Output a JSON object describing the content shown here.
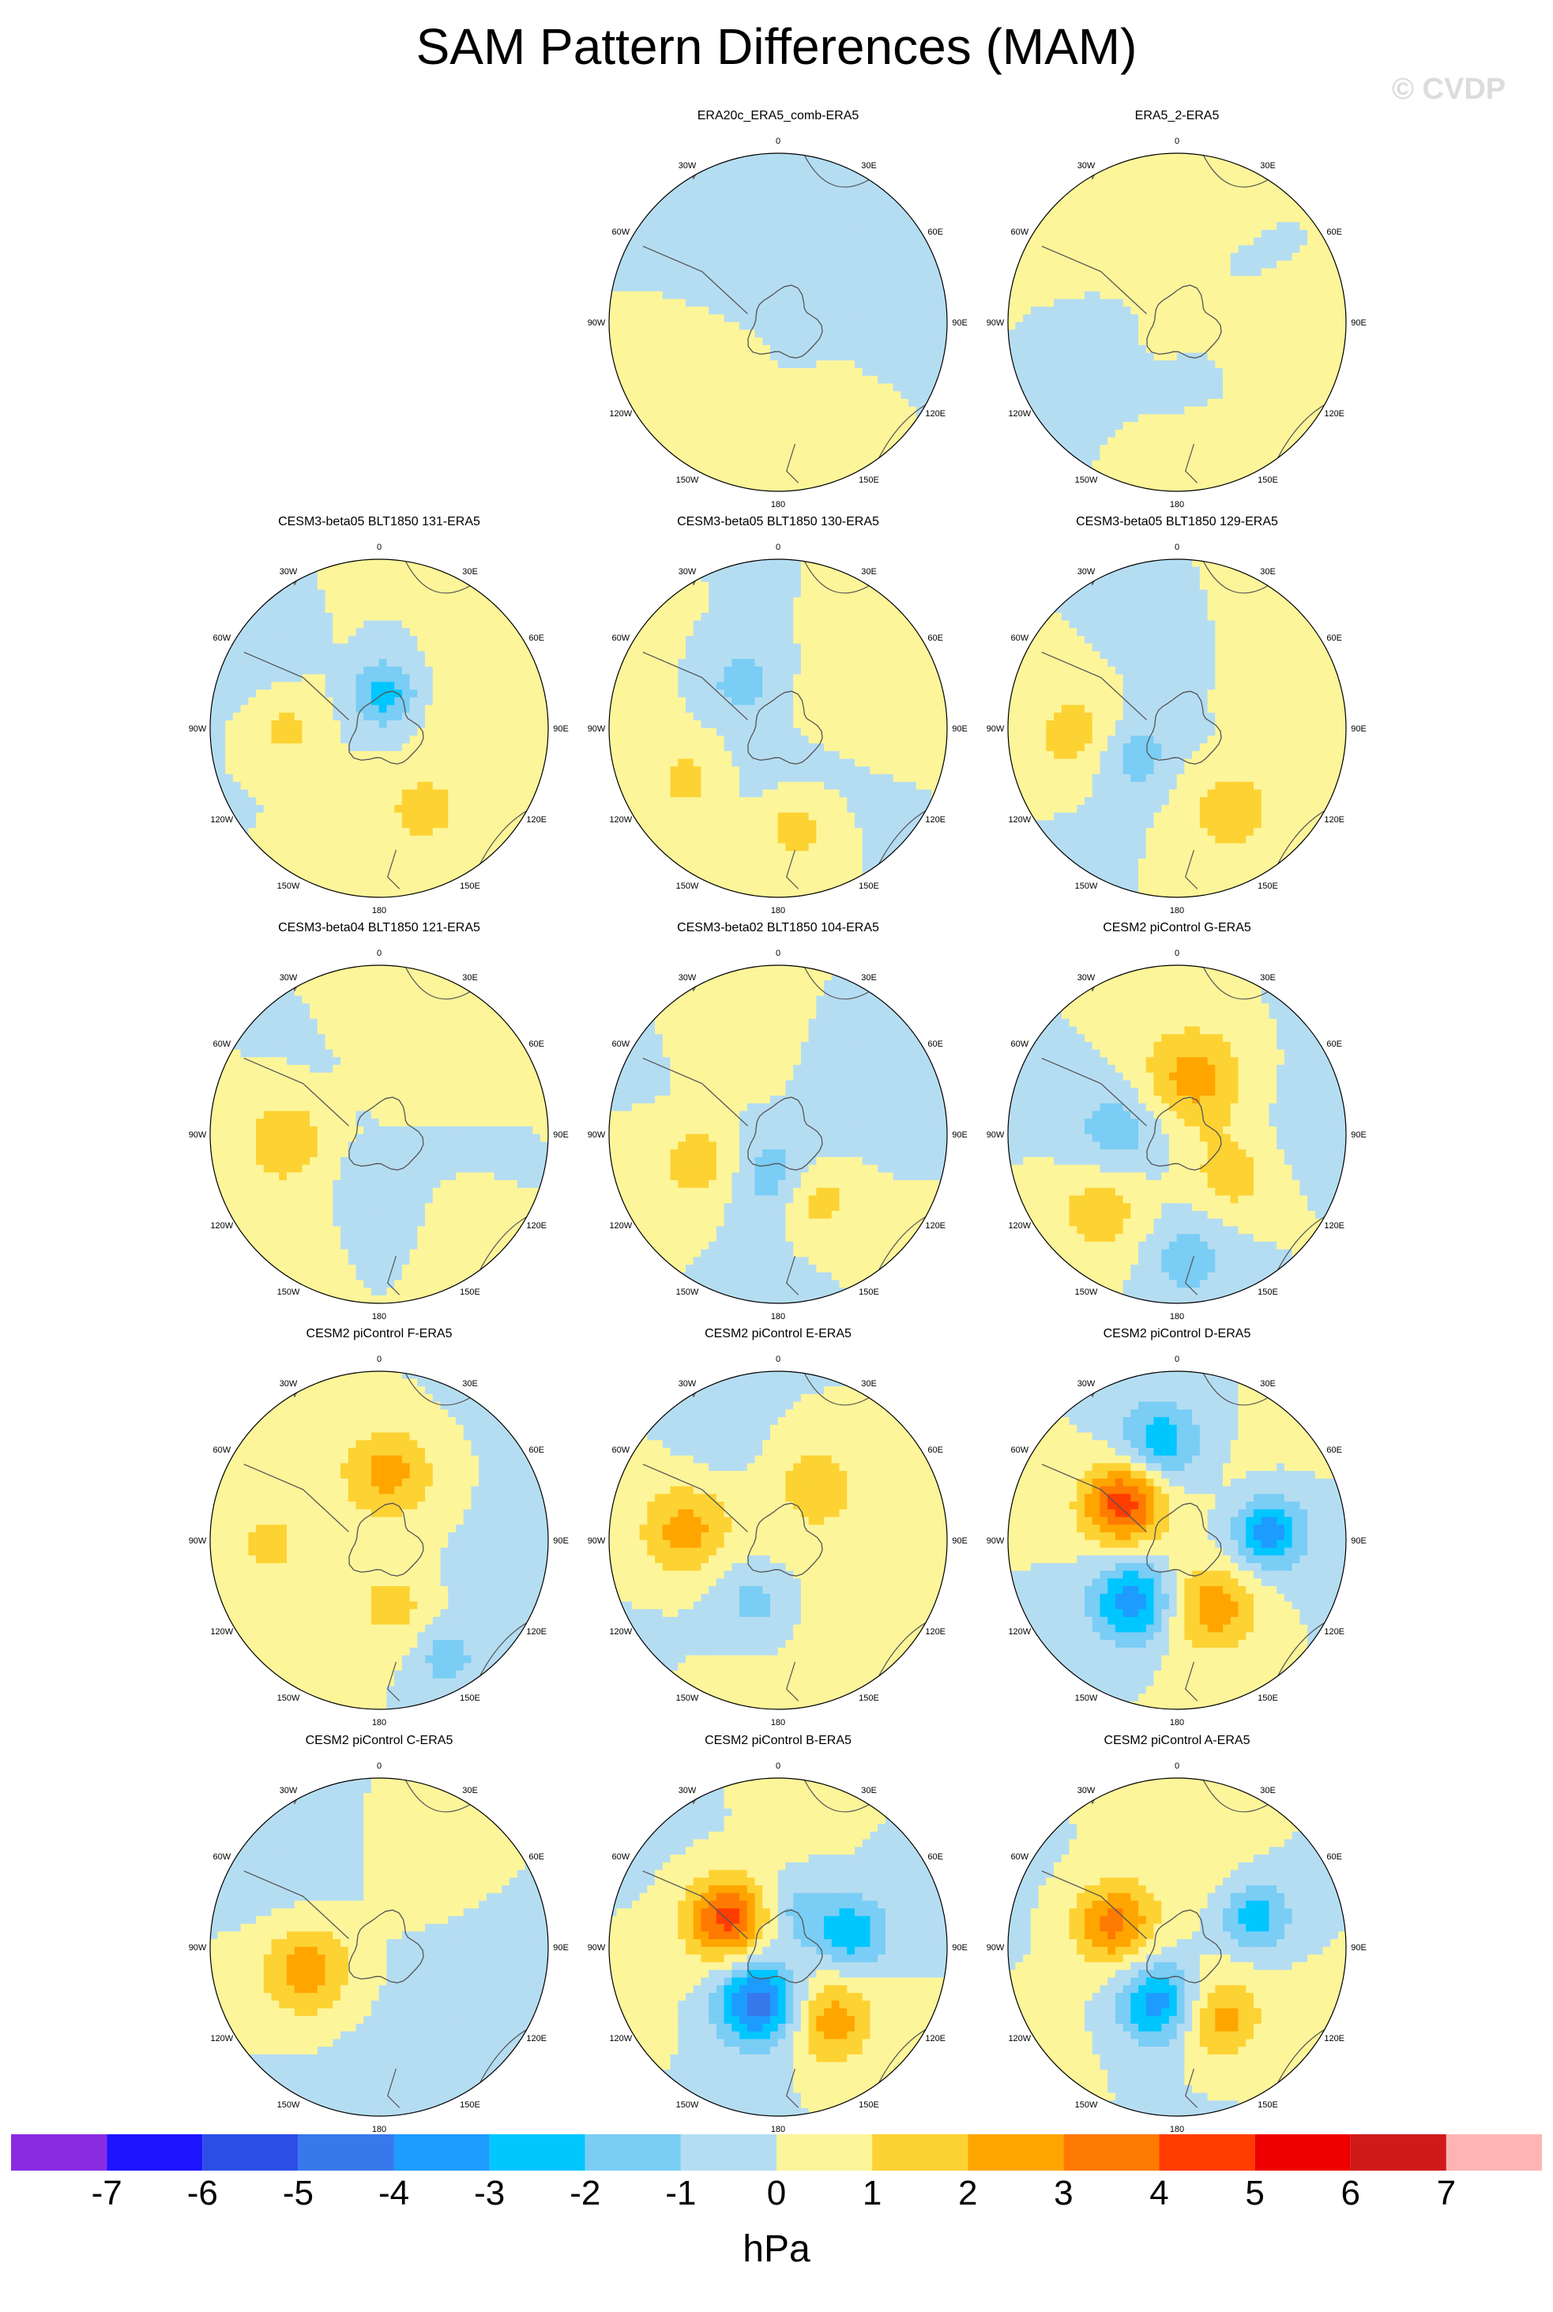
{
  "title": "SAM Pattern Differences (MAM)",
  "watermark": "© CVDP",
  "chart_data": {
    "type": "polar-contour-map-grid",
    "projection": "south-polar-stereographic",
    "variable": "SAM pattern difference",
    "season": "MAM",
    "units": "hPa",
    "colorbar": {
      "levels": [
        -7,
        -6,
        -5,
        -4,
        -3,
        -2,
        -1,
        0,
        1,
        2,
        3,
        4,
        5,
        6,
        7
      ],
      "tick_labels": [
        "-7",
        "-6",
        "-5",
        "-4",
        "-3",
        "-2",
        "-1",
        "0",
        "1",
        "2",
        "3",
        "4",
        "5",
        "6",
        "7"
      ],
      "colors": [
        "#8a2be2",
        "#1e14ff",
        "#2c4ee6",
        "#3778ec",
        "#1e9bff",
        "#00c6ff",
        "#7acdf5",
        "#b5ddf2",
        "#fdf59a",
        "#fdd233",
        "#ffa500",
        "#ff7a00",
        "#ff3c00",
        "#ee0000",
        "#d01a1a",
        "#ffb4b4"
      ],
      "label": "hPa"
    },
    "lon_labels": [
      "0",
      "30E",
      "60E",
      "90E",
      "120E",
      "150E",
      "180",
      "150W",
      "120W",
      "90W",
      "60W",
      "30W"
    ],
    "panels": [
      {
        "title": "ERA20c_ERA5_comb-ERA5",
        "blobs": [
          {
            "v": 0.5,
            "a": 190,
            "r": 0.7,
            "s": 0.9
          },
          {
            "v": -0.5,
            "a": 60,
            "r": 0.45,
            "s": 1.0
          },
          {
            "v": 0.5,
            "a": 250,
            "r": 0.5,
            "s": 0.55
          },
          {
            "v": -0.5,
            "a": 320,
            "r": 0.3,
            "s": 0.5
          }
        ]
      },
      {
        "title": "ERA5_2-ERA5",
        "blobs": [
          {
            "v": 0.5,
            "a": 330,
            "r": 0.55,
            "s": 1.1
          },
          {
            "v": 0.5,
            "a": 170,
            "r": 0.75,
            "s": 0.8
          },
          {
            "v": -0.5,
            "a": 220,
            "r": 0.35,
            "s": 0.9
          },
          {
            "v": 0.5,
            "a": 0,
            "r": 0.0,
            "s": 0.35
          }
        ]
      },
      {
        "title": "CESM3-beta05 BLT1850 131-ERA5",
        "blobs": [
          {
            "v": -2.5,
            "a": 10,
            "r": 0.2,
            "s": 0.35
          },
          {
            "v": 1.5,
            "a": 270,
            "r": 0.55,
            "s": 0.4
          },
          {
            "v": 1.5,
            "a": 150,
            "r": 0.55,
            "s": 0.45
          },
          {
            "v": -0.5,
            "a": 300,
            "r": 0.75,
            "s": 0.6
          },
          {
            "v": 0.5,
            "a": 60,
            "r": 0.6,
            "s": 0.8
          }
        ]
      },
      {
        "title": "CESM3-beta05 BLT1850 130-ERA5",
        "blobs": [
          {
            "v": -1.5,
            "a": 320,
            "r": 0.35,
            "s": 0.4
          },
          {
            "v": 1.5,
            "a": 240,
            "r": 0.6,
            "s": 0.45
          },
          {
            "v": 1.5,
            "a": 170,
            "r": 0.6,
            "s": 0.35
          },
          {
            "v": -0.5,
            "a": 200,
            "r": 0.35,
            "s": 0.6
          },
          {
            "v": 0.5,
            "a": 60,
            "r": 0.55,
            "s": 0.8
          }
        ]
      },
      {
        "title": "CESM3-beta05 BLT1850 129-ERA5",
        "blobs": [
          {
            "v": 1.5,
            "a": 265,
            "r": 0.6,
            "s": 0.45
          },
          {
            "v": 1.5,
            "a": 145,
            "r": 0.6,
            "s": 0.45
          },
          {
            "v": -1.5,
            "a": 240,
            "r": 0.3,
            "s": 0.4
          },
          {
            "v": -0.5,
            "a": 20,
            "r": 0.35,
            "s": 0.6
          },
          {
            "v": 0.5,
            "a": 60,
            "r": 0.6,
            "s": 0.8
          }
        ]
      },
      {
        "title": "CESM3-beta04 BLT1850 121-ERA5",
        "blobs": [
          {
            "v": 1.5,
            "a": 268,
            "r": 0.55,
            "s": 0.4
          },
          {
            "v": -0.5,
            "a": 180,
            "r": 0.25,
            "s": 0.6
          },
          {
            "v": 0.5,
            "a": 30,
            "r": 0.6,
            "s": 0.9
          },
          {
            "v": 0.5,
            "a": 230,
            "r": 0.7,
            "s": 0.7
          }
        ]
      },
      {
        "title": "CESM3-beta02 BLT1850 104-ERA5",
        "blobs": [
          {
            "v": -1.5,
            "a": 190,
            "r": 0.25,
            "s": 0.4
          },
          {
            "v": 1.5,
            "a": 250,
            "r": 0.5,
            "s": 0.4
          },
          {
            "v": 1.5,
            "a": 150,
            "r": 0.45,
            "s": 0.35
          },
          {
            "v": -0.5,
            "a": 60,
            "r": 0.5,
            "s": 0.7
          },
          {
            "v": 0.5,
            "a": 330,
            "r": 0.55,
            "s": 0.5
          }
        ]
      },
      {
        "title": "CESM2 piControl G-ERA5",
        "blobs": [
          {
            "v": 2.5,
            "a": 20,
            "r": 0.35,
            "s": 0.5
          },
          {
            "v": -1.5,
            "a": 270,
            "r": 0.35,
            "s": 0.45
          },
          {
            "v": 1.5,
            "a": 225,
            "r": 0.65,
            "s": 0.45
          },
          {
            "v": -1.5,
            "a": 175,
            "r": 0.75,
            "s": 0.4
          },
          {
            "v": 1.5,
            "a": 130,
            "r": 0.4,
            "s": 0.4
          },
          {
            "v": -0.5,
            "a": 90,
            "r": 0.8,
            "s": 0.5
          }
        ]
      },
      {
        "title": "CESM2 piControl F-ERA5",
        "blobs": [
          {
            "v": 2.5,
            "a": 10,
            "r": 0.4,
            "s": 0.45
          },
          {
            "v": 1.5,
            "a": 268,
            "r": 0.65,
            "s": 0.4
          },
          {
            "v": 1.5,
            "a": 165,
            "r": 0.4,
            "s": 0.4
          },
          {
            "v": -1.5,
            "a": 150,
            "r": 0.8,
            "s": 0.3
          },
          {
            "v": -0.5,
            "a": 100,
            "r": 0.7,
            "s": 0.6
          }
        ]
      },
      {
        "title": "CESM2 piControl E-ERA5",
        "blobs": [
          {
            "v": 2.5,
            "a": 275,
            "r": 0.55,
            "s": 0.45
          },
          {
            "v": 1.5,
            "a": 30,
            "r": 0.4,
            "s": 0.5
          },
          {
            "v": -1.5,
            "a": 200,
            "r": 0.4,
            "s": 0.35
          },
          {
            "v": 0.5,
            "a": 120,
            "r": 0.6,
            "s": 0.7
          },
          {
            "v": -0.5,
            "a": 330,
            "r": 0.65,
            "s": 0.5
          }
        ]
      },
      {
        "title": "CESM2 piControl D-ERA5",
        "blobs": [
          {
            "v": 4.5,
            "a": 305,
            "r": 0.38,
            "s": 0.4
          },
          {
            "v": -3.5,
            "a": 215,
            "r": 0.45,
            "s": 0.4
          },
          {
            "v": -3.5,
            "a": 85,
            "r": 0.55,
            "s": 0.35
          },
          {
            "v": -2.5,
            "a": 350,
            "r": 0.6,
            "s": 0.4
          },
          {
            "v": 2.5,
            "a": 150,
            "r": 0.45,
            "s": 0.45
          }
        ]
      },
      {
        "title": "CESM2 piControl C-ERA5",
        "blobs": [
          {
            "v": 2.5,
            "a": 250,
            "r": 0.45,
            "s": 0.45
          },
          {
            "v": -0.5,
            "a": 130,
            "r": 0.55,
            "s": 0.7
          },
          {
            "v": 0.5,
            "a": 30,
            "r": 0.5,
            "s": 0.5
          },
          {
            "v": -0.5,
            "a": 300,
            "r": 0.8,
            "s": 0.5
          }
        ]
      },
      {
        "title": "CESM2 piControl B-ERA5",
        "blobs": [
          {
            "v": 4.5,
            "a": 300,
            "r": 0.35,
            "s": 0.4
          },
          {
            "v": -4.5,
            "a": 200,
            "r": 0.35,
            "s": 0.4
          },
          {
            "v": -2.5,
            "a": 80,
            "r": 0.45,
            "s": 0.35
          },
          {
            "v": 2.5,
            "a": 145,
            "r": 0.55,
            "s": 0.4
          },
          {
            "v": -1.5,
            "a": 30,
            "r": 0.25,
            "s": 0.35
          }
        ]
      },
      {
        "title": "CESM2 piControl A-ERA5",
        "blobs": [
          {
            "v": 3.5,
            "a": 290,
            "r": 0.4,
            "s": 0.4
          },
          {
            "v": -3.5,
            "a": 200,
            "r": 0.35,
            "s": 0.4
          },
          {
            "v": -2.5,
            "a": 70,
            "r": 0.5,
            "s": 0.35
          },
          {
            "v": 2.5,
            "a": 150,
            "r": 0.5,
            "s": 0.4
          },
          {
            "v": 0.5,
            "a": 20,
            "r": 0.5,
            "s": 0.6
          }
        ]
      }
    ]
  }
}
